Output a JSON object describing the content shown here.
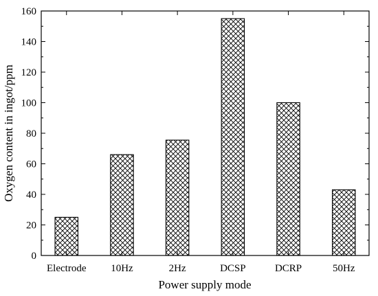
{
  "chart_data": {
    "type": "bar",
    "categories": [
      "Electrode",
      "10Hz",
      "2Hz",
      "DCSP",
      "DCRP",
      "50Hz"
    ],
    "series": [
      {
        "values": [
          25,
          66,
          75.5,
          155,
          100,
          43
        ]
      }
    ],
    "xlabel": "Power supply mode",
    "ylabel": "Oxygen content in ingot/ppm",
    "ylim": [
      0,
      160
    ],
    "yticks": [
      0,
      20,
      40,
      60,
      80,
      100,
      120,
      140,
      160
    ],
    "grid": false,
    "legend": "none",
    "bar_fill": "crosshatch",
    "colors": {
      "bar_stroke": "#000000",
      "bar_hatch": "#000000",
      "background": "#ffffff"
    }
  }
}
